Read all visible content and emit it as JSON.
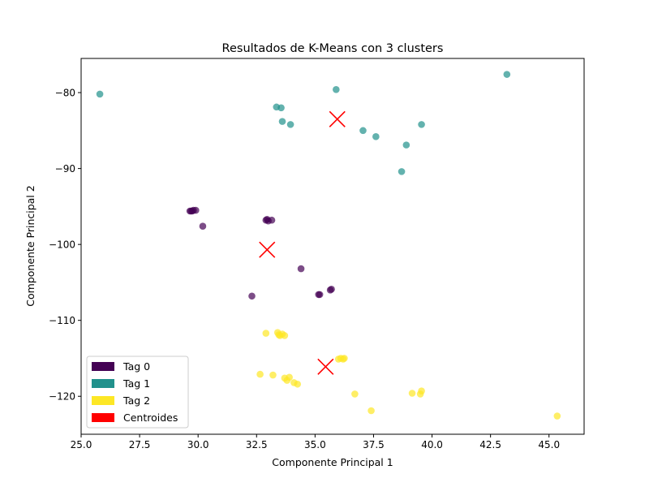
{
  "chart_data": {
    "type": "scatter",
    "title": "Resultados de K-Means con 3 clusters",
    "xlabel": "Componente Principal 1",
    "ylabel": "Componente Principal 2",
    "xlim": [
      25.0,
      46.5
    ],
    "ylim": [
      -125.0,
      -75.5
    ],
    "x_ticks": [
      25.0,
      27.5,
      30.0,
      32.5,
      35.0,
      37.5,
      40.0,
      42.5,
      45.0
    ],
    "x_tick_labels": [
      "25.0",
      "27.5",
      "30.0",
      "32.5",
      "35.0",
      "37.5",
      "40.0",
      "42.5",
      "45.0"
    ],
    "y_ticks": [
      -80,
      -90,
      -100,
      -110,
      -120
    ],
    "y_tick_labels": [
      "−80",
      "−90",
      "−100",
      "−110",
      "−120"
    ],
    "grid": false,
    "legend_position": "bottom-left",
    "series": [
      {
        "name": "Tag 0",
        "color": "#440154",
        "points": [
          [
            29.7,
            -95.6
          ],
          [
            29.8,
            -95.5
          ],
          [
            29.9,
            -95.5
          ],
          [
            29.75,
            -95.6
          ],
          [
            29.65,
            -95.6
          ],
          [
            30.2,
            -97.6
          ],
          [
            32.9,
            -96.8
          ],
          [
            33.0,
            -96.9
          ],
          [
            32.95,
            -96.7
          ],
          [
            33.15,
            -96.8
          ],
          [
            34.4,
            -103.2
          ],
          [
            32.3,
            -106.8
          ],
          [
            35.15,
            -106.6
          ],
          [
            35.2,
            -106.6
          ],
          [
            35.65,
            -106.0
          ],
          [
            35.7,
            -105.9
          ]
        ]
      },
      {
        "name": "Tag 1",
        "color": "#21918c",
        "points": [
          [
            25.8,
            -80.2
          ],
          [
            35.9,
            -79.6
          ],
          [
            43.2,
            -77.6
          ],
          [
            33.35,
            -81.9
          ],
          [
            33.55,
            -82.0
          ],
          [
            33.6,
            -83.8
          ],
          [
            33.95,
            -84.2
          ],
          [
            37.05,
            -85.0
          ],
          [
            37.6,
            -85.8
          ],
          [
            39.55,
            -84.2
          ],
          [
            38.9,
            -86.9
          ],
          [
            38.7,
            -90.4
          ]
        ]
      },
      {
        "name": "Tag 2",
        "color": "#fde725",
        "points": [
          [
            32.9,
            -111.7
          ],
          [
            33.4,
            -111.6
          ],
          [
            33.5,
            -112.0
          ],
          [
            33.7,
            -112.0
          ],
          [
            33.45,
            -111.9
          ],
          [
            33.6,
            -111.8
          ],
          [
            36.0,
            -115.1
          ],
          [
            36.1,
            -115.0
          ],
          [
            36.2,
            -115.1
          ],
          [
            36.25,
            -115.0
          ],
          [
            32.65,
            -117.1
          ],
          [
            33.2,
            -117.2
          ],
          [
            33.7,
            -117.6
          ],
          [
            33.9,
            -117.5
          ],
          [
            33.8,
            -117.9
          ],
          [
            34.1,
            -118.2
          ],
          [
            34.25,
            -118.4
          ],
          [
            36.7,
            -119.7
          ],
          [
            37.4,
            -121.9
          ],
          [
            39.15,
            -119.6
          ],
          [
            39.5,
            -119.7
          ],
          [
            39.55,
            -119.3
          ],
          [
            45.35,
            -122.6
          ]
        ]
      }
    ],
    "centroids": {
      "name": "Centroides",
      "color": "#ff0000",
      "marker": "x",
      "points": [
        [
          35.95,
          -83.5
        ],
        [
          32.95,
          -100.7
        ],
        [
          35.45,
          -116.1
        ]
      ]
    }
  }
}
